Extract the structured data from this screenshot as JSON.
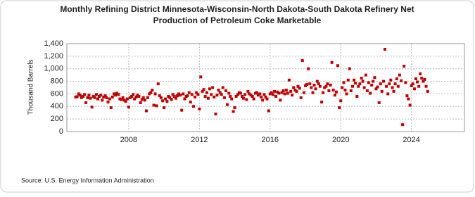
{
  "chart_data": {
    "type": "scatter",
    "title": [
      "Monthly Refining District Minnesota-Wisconsin-North Dakota-South Dakota Refinery Net",
      "Production of Petroleum Coke Marketable"
    ],
    "y_label": "Thousand Barrels",
    "source": "Source: U.S. Energy Information Administration",
    "color": "#c00000",
    "grid": true,
    "xlim": [
      2004.5,
      2027
    ],
    "xticks": [
      2008,
      2012,
      2016,
      2020,
      2024
    ],
    "ylim": [
      0,
      1400
    ],
    "yticks": [
      0,
      200,
      400,
      600,
      800,
      {
        "value": 1000,
        "label": "1,000"
      },
      {
        "value": 1200,
        "label": "1,200"
      },
      {
        "value": 1400,
        "label": "1,400"
      }
    ],
    "x": [
      2005,
      2005.08,
      2005.17,
      2005.25,
      2005.33,
      2005.42,
      2005.5,
      2005.58,
      2005.67,
      2005.75,
      2005.83,
      2005.92,
      2006,
      2006.08,
      2006.17,
      2006.25,
      2006.33,
      2006.42,
      2006.5,
      2006.58,
      2006.67,
      2006.75,
      2006.83,
      2006.92,
      2007,
      2007.08,
      2007.17,
      2007.25,
      2007.33,
      2007.42,
      2007.5,
      2007.58,
      2007.67,
      2007.75,
      2007.83,
      2007.92,
      2008,
      2008.08,
      2008.17,
      2008.25,
      2008.33,
      2008.42,
      2008.5,
      2008.58,
      2008.67,
      2008.75,
      2008.83,
      2008.92,
      2009,
      2009.08,
      2009.17,
      2009.25,
      2009.33,
      2009.42,
      2009.5,
      2009.58,
      2009.67,
      2009.75,
      2009.83,
      2009.92,
      2010,
      2010.08,
      2010.17,
      2010.25,
      2010.33,
      2010.42,
      2010.5,
      2010.58,
      2010.67,
      2010.75,
      2010.83,
      2010.92,
      2011,
      2011.08,
      2011.17,
      2011.25,
      2011.33,
      2011.42,
      2011.5,
      2011.58,
      2011.67,
      2011.75,
      2011.83,
      2011.92,
      2012,
      2012.08,
      2012.17,
      2012.25,
      2012.33,
      2012.42,
      2012.5,
      2012.58,
      2012.67,
      2012.75,
      2012.83,
      2012.92,
      2013,
      2013.08,
      2013.17,
      2013.25,
      2013.33,
      2013.42,
      2013.5,
      2013.58,
      2013.67,
      2013.75,
      2013.83,
      2013.92,
      2014,
      2014.08,
      2014.17,
      2014.25,
      2014.33,
      2014.42,
      2014.5,
      2014.58,
      2014.67,
      2014.75,
      2014.83,
      2014.92,
      2015,
      2015.08,
      2015.17,
      2015.25,
      2015.33,
      2015.42,
      2015.5,
      2015.58,
      2015.67,
      2015.75,
      2015.83,
      2015.92,
      2016,
      2016.08,
      2016.17,
      2016.25,
      2016.33,
      2016.42,
      2016.5,
      2016.58,
      2016.67,
      2016.75,
      2016.83,
      2016.92,
      2017,
      2017.08,
      2017.17,
      2017.25,
      2017.33,
      2017.42,
      2017.5,
      2017.58,
      2017.67,
      2017.75,
      2017.83,
      2017.92,
      2018,
      2018.08,
      2018.17,
      2018.25,
      2018.33,
      2018.42,
      2018.5,
      2018.58,
      2018.67,
      2018.75,
      2018.83,
      2018.92,
      2019,
      2019.08,
      2019.17,
      2019.25,
      2019.33,
      2019.42,
      2019.5,
      2019.58,
      2019.67,
      2019.75,
      2019.83,
      2019.92,
      2020,
      2020.08,
      2020.17,
      2020.25,
      2020.33,
      2020.42,
      2020.5,
      2020.58,
      2020.67,
      2020.75,
      2020.83,
      2020.92,
      2021,
      2021.08,
      2021.17,
      2021.25,
      2021.33,
      2021.42,
      2021.5,
      2021.58,
      2021.67,
      2021.75,
      2021.83,
      2021.92,
      2022,
      2022.08,
      2022.17,
      2022.25,
      2022.33,
      2022.42,
      2022.5,
      2022.58,
      2022.67,
      2022.75,
      2022.83,
      2022.92,
      2023,
      2023.08,
      2023.17,
      2023.25,
      2023.33,
      2023.42,
      2023.5,
      2023.58,
      2023.67,
      2023.75,
      2023.83,
      2023.92,
      2024,
      2024.08,
      2024.17,
      2024.25,
      2024.33,
      2024.42,
      2024.5,
      2024.58,
      2024.67,
      2024.75,
      2024.83,
      2024.92
    ],
    "values": [
      550,
      555,
      600,
      580,
      540,
      560,
      590,
      460,
      540,
      580,
      530,
      390,
      560,
      540,
      590,
      520,
      560,
      580,
      500,
      550,
      570,
      540,
      470,
      520,
      380,
      550,
      600,
      580,
      610,
      590,
      520,
      510,
      540,
      500,
      480,
      520,
      390,
      540,
      560,
      590,
      520,
      550,
      580,
      560,
      460,
      510,
      540,
      500,
      330,
      540,
      600,
      620,
      660,
      420,
      600,
      410,
      760,
      570,
      540,
      490,
      380,
      520,
      480,
      560,
      540,
      510,
      590,
      560,
      530,
      570,
      600,
      580,
      340,
      600,
      520,
      560,
      570,
      620,
      470,
      590,
      400,
      550,
      620,
      590,
      360,
      870,
      640,
      670,
      560,
      620,
      530,
      680,
      590,
      700,
      550,
      280,
      580,
      660,
      620,
      590,
      700,
      540,
      650,
      430,
      610,
      560,
      520,
      320,
      380,
      560,
      590,
      620,
      610,
      560,
      530,
      590,
      510,
      640,
      600,
      580,
      560,
      520,
      610,
      620,
      580,
      600,
      550,
      500,
      590,
      550,
      520,
      330,
      600,
      620,
      590,
      640,
      560,
      630,
      610,
      500,
      620,
      650,
      600,
      660,
      610,
      820,
      640,
      580,
      700,
      660,
      640,
      720,
      690,
      540,
      1130,
      620,
      730,
      750,
      1000,
      760,
      700,
      620,
      740,
      680,
      800,
      760,
      720,
      470,
      620,
      700,
      720,
      760,
      650,
      740,
      1100,
      660,
      580,
      630,
      1050,
      380,
      490,
      700,
      780,
      660,
      600,
      820,
      1000,
      650,
      720,
      820,
      770,
      560,
      720,
      760,
      850,
      800,
      700,
      900,
      650,
      780,
      610,
      740,
      800,
      860,
      680,
      710,
      460,
      760,
      640,
      800,
      1310,
      720,
      600,
      760,
      820,
      700,
      640,
      760,
      840,
      720,
      900,
      810,
      110,
      1040,
      780,
      570,
      520,
      420,
      730,
      760,
      680,
      840,
      790,
      720,
      920,
      850,
      800,
      830,
      720,
      640
    ]
  }
}
